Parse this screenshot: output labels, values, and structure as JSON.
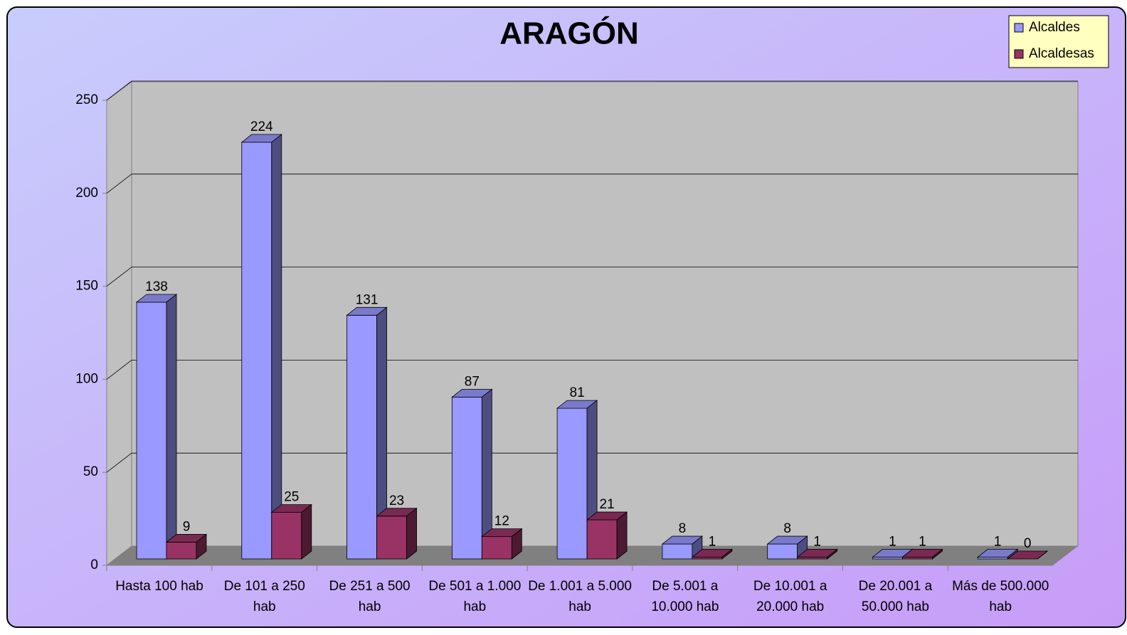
{
  "chart_data": {
    "type": "bar3d",
    "title": "ARAGÓN",
    "categories": [
      "Hasta 100 hab",
      "De 101 a 250 hab",
      "De 251 a 500 hab",
      "De 501 a 1.000 hab",
      "De 1.001 a 5.000 hab",
      "De 5.001 a 10.000 hab",
      "De 10.001 a 20.000 hab",
      "De 20.001 a 50.000 hab",
      "Más de 500.000 hab"
    ],
    "series": [
      {
        "name": "Alcaldes",
        "color": "#9999ff",
        "values": [
          138,
          224,
          131,
          87,
          81,
          8,
          8,
          1,
          1
        ]
      },
      {
        "name": "Alcaldesas",
        "color": "#993366",
        "values": [
          9,
          25,
          23,
          12,
          21,
          1,
          1,
          1,
          0
        ]
      }
    ],
    "ylim": [
      0,
      250
    ],
    "yticks": [
      0,
      50,
      100,
      150,
      200,
      250
    ],
    "grid": true,
    "legend": "top-right"
  }
}
